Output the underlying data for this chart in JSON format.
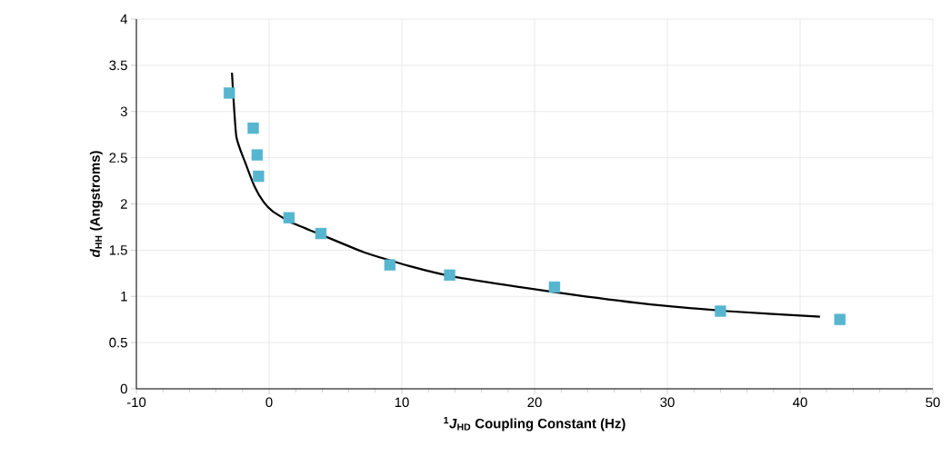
{
  "chart_data": {
    "type": "scatter",
    "xlabel": "$^{1}$*J*$_{HD}$ Coupling Constant (Hz)",
    "ylabel": "*d*$_{HH}$ (Angstroms)",
    "xlim": [
      -10,
      50
    ],
    "ylim": [
      0,
      4
    ],
    "xticks": [
      -10,
      0,
      10,
      20,
      30,
      40,
      50
    ],
    "yticks": [
      0,
      0.5,
      1,
      1.5,
      2,
      2.5,
      3,
      3.5,
      4
    ],
    "grid": true,
    "series": [
      {
        "type": "line",
        "color": "#000000",
        "marker": "none",
        "x": [
          -2.8,
          -2.47,
          -1.78,
          -1.1,
          -0.41,
          0.27,
          1.64,
          3.7,
          7.1,
          10.5,
          14.0,
          20.8,
          27.7,
          34.5,
          41.5
        ],
        "values": [
          3.42,
          2.73,
          2.44,
          2.19,
          2.02,
          1.92,
          1.8,
          1.68,
          1.48,
          1.33,
          1.21,
          1.06,
          0.93,
          0.84,
          0.78
        ]
      },
      {
        "color": "#56b5cf",
        "marker": "square",
        "x": [
          -3.0,
          -1.2,
          -0.9,
          -0.8,
          1.5,
          3.9,
          9.1,
          13.6,
          21.5,
          34.0,
          43.0
        ],
        "values": [
          3.2,
          2.82,
          2.53,
          2.3,
          1.85,
          1.68,
          1.34,
          1.23,
          1.1,
          0.84,
          0.75
        ]
      }
    ]
  }
}
